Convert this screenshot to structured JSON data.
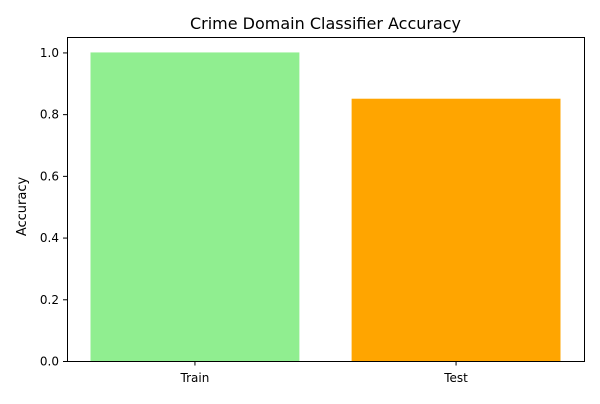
{
  "chart_data": {
    "type": "bar",
    "title": "Crime Domain Classifier Accuracy",
    "xlabel": "",
    "ylabel": "Accuracy",
    "categories": [
      "Train",
      "Test"
    ],
    "values": [
      1.0,
      0.85
    ],
    "colors": [
      "#90ee90",
      "#ffa500"
    ],
    "ylim": [
      0,
      1.05
    ],
    "yticks": [
      0.0,
      0.2,
      0.4,
      0.6,
      0.8,
      1.0
    ],
    "ytick_labels": [
      "0.0",
      "0.2",
      "0.4",
      "0.6",
      "0.8",
      "1.0"
    ],
    "grid": false,
    "legend": "none"
  }
}
